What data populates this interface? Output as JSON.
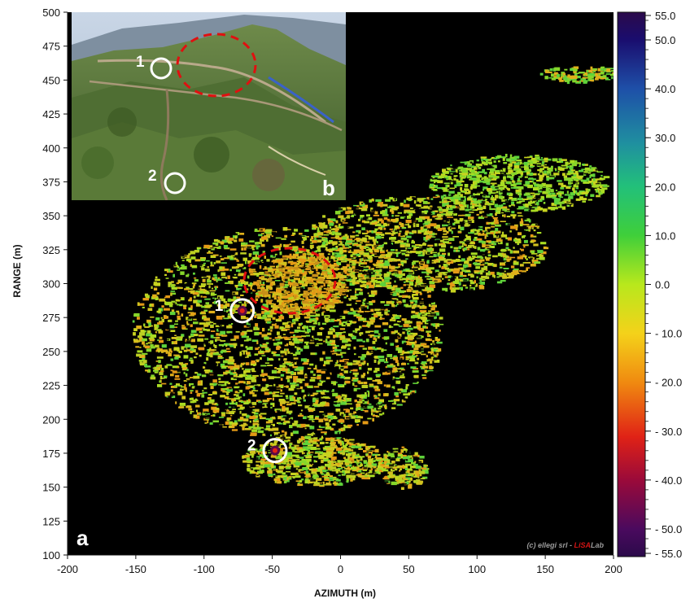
{
  "chart_data": {
    "type": "heatmap",
    "xlabel": "AZIMUTH (m)",
    "ylabel": "RANGE (m)",
    "xlim": [
      -200,
      200
    ],
    "ylim": [
      100,
      500
    ],
    "x_ticks": [
      -200,
      -150,
      -100,
      -50,
      0,
      50,
      100,
      150,
      200
    ],
    "y_ticks": [
      100,
      125,
      150,
      175,
      200,
      225,
      250,
      275,
      300,
      325,
      350,
      375,
      400,
      425,
      450,
      475,
      500
    ],
    "background": "#000000",
    "colorbar": {
      "range": [
        -55,
        55
      ],
      "tick_labels": [
        "55.0",
        "50.0",
        "40.0",
        "30.0",
        "20.0",
        "10.0",
        "0.0",
        "- 10.0",
        "- 20.0",
        "- 30.0",
        "- 40.0",
        "- 50.0",
        "- 55.0"
      ],
      "tick_values": [
        55,
        50,
        40,
        30,
        20,
        10,
        0,
        -10,
        -20,
        -30,
        -40,
        -50,
        -55
      ],
      "colors": [
        "#2b0a4a",
        "#1a0d6e",
        "#1e4fa8",
        "#1f9a8e",
        "#3fcf3a",
        "#b8e81c",
        "#f4d21a",
        "#f08a10",
        "#e02216",
        "#8a0a5a",
        "#2b0a4a"
      ]
    },
    "annotations": [
      {
        "label": "1",
        "x": -72,
        "y": 280
      },
      {
        "label": "2",
        "x": -48,
        "y": 177
      },
      {
        "label": "a",
        "position": "bottom-left"
      },
      {
        "label": "b",
        "position": "inset-bottom-right"
      }
    ],
    "credit": {
      "prefix": "(c) ellegi srl - ",
      "brand_red": "LiSA",
      "brand_rest": "Lab"
    },
    "inset_photo": {
      "markers": [
        "1",
        "2"
      ],
      "has_red_dashed_ellipse": true
    }
  }
}
